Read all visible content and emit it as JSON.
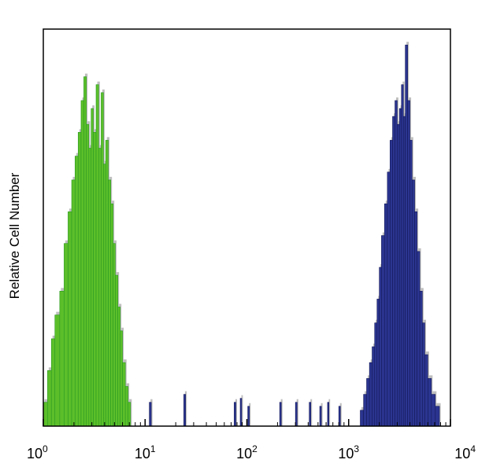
{
  "chart_data": {
    "type": "histogram",
    "xscale": "log",
    "xlim": [
      1,
      10000
    ],
    "ylim": [
      0,
      100
    ],
    "xlabel": "",
    "ylabel": "Relative Cell Number",
    "xticks": [
      {
        "value": 1,
        "base": "10",
        "exp": "0"
      },
      {
        "value": 10,
        "base": "10",
        "exp": "1"
      },
      {
        "value": 100,
        "base": "10",
        "exp": "2"
      },
      {
        "value": 1000,
        "base": "10",
        "exp": "3"
      },
      {
        "value": 10000,
        "base": "10",
        "exp": "4"
      }
    ],
    "colors": {
      "green_fill": "#5cbf2a",
      "green_edge": "#2a9a22",
      "blue_fill": "#2b3590",
      "blue_edge": "#141a5a",
      "shadow": "#8a8a8a"
    },
    "series": [
      {
        "color": "green",
        "bins": [
          [
            1.0,
            1.1,
            6
          ],
          [
            1.1,
            1.2,
            14
          ],
          [
            1.2,
            1.3,
            22
          ],
          [
            1.3,
            1.45,
            28
          ],
          [
            1.45,
            1.6,
            34
          ],
          [
            1.6,
            1.75,
            46
          ],
          [
            1.75,
            1.9,
            54
          ],
          [
            1.9,
            2.05,
            62
          ],
          [
            2.05,
            2.2,
            68
          ],
          [
            2.2,
            2.35,
            74
          ],
          [
            2.35,
            2.5,
            82
          ],
          [
            2.5,
            2.65,
            88
          ],
          [
            2.65,
            2.8,
            76
          ],
          [
            2.8,
            2.95,
            70
          ],
          [
            2.95,
            3.1,
            80
          ],
          [
            3.1,
            3.3,
            74
          ],
          [
            3.3,
            3.5,
            86
          ],
          [
            3.5,
            3.7,
            70
          ],
          [
            3.7,
            3.9,
            84
          ],
          [
            3.9,
            4.1,
            66
          ],
          [
            4.1,
            4.35,
            72
          ],
          [
            4.35,
            4.6,
            62
          ],
          [
            4.6,
            4.85,
            56
          ],
          [
            4.85,
            5.1,
            46
          ],
          [
            5.1,
            5.4,
            38
          ],
          [
            5.4,
            5.7,
            30
          ],
          [
            5.7,
            6.0,
            24
          ],
          [
            6.0,
            6.4,
            16
          ],
          [
            6.4,
            6.8,
            10
          ],
          [
            6.8,
            7.2,
            6
          ]
        ]
      },
      {
        "color": "blue",
        "bins": [
          [
            11,
            11.5,
            6
          ],
          [
            24,
            25,
            8
          ],
          [
            75,
            78,
            6
          ],
          [
            86,
            89,
            7
          ],
          [
            102,
            106,
            5
          ],
          [
            210,
            218,
            6
          ],
          [
            300,
            312,
            6
          ],
          [
            410,
            425,
            6
          ],
          [
            520,
            540,
            5
          ],
          [
            620,
            640,
            6
          ],
          [
            800,
            830,
            5
          ],
          [
            1300,
            1400,
            4
          ],
          [
            1400,
            1500,
            8
          ],
          [
            1500,
            1600,
            12
          ],
          [
            1600,
            1700,
            16
          ],
          [
            1700,
            1800,
            20
          ],
          [
            1800,
            1900,
            26
          ],
          [
            1900,
            2000,
            32
          ],
          [
            2000,
            2100,
            40
          ],
          [
            2100,
            2250,
            48
          ],
          [
            2250,
            2400,
            56
          ],
          [
            2400,
            2550,
            64
          ],
          [
            2550,
            2700,
            72
          ],
          [
            2700,
            2850,
            78
          ],
          [
            2850,
            3000,
            82
          ],
          [
            3000,
            3150,
            76
          ],
          [
            3150,
            3300,
            80
          ],
          [
            3300,
            3450,
            86
          ],
          [
            3450,
            3600,
            78
          ],
          [
            3600,
            3800,
            96
          ],
          [
            3800,
            4000,
            82
          ],
          [
            4000,
            4200,
            72
          ],
          [
            4200,
            4450,
            62
          ],
          [
            4450,
            4700,
            54
          ],
          [
            4700,
            5000,
            44
          ],
          [
            5000,
            5300,
            34
          ],
          [
            5300,
            5600,
            26
          ],
          [
            5600,
            6000,
            18
          ],
          [
            6000,
            6500,
            12
          ],
          [
            6500,
            7100,
            8
          ],
          [
            7100,
            7800,
            5
          ]
        ]
      }
    ]
  }
}
